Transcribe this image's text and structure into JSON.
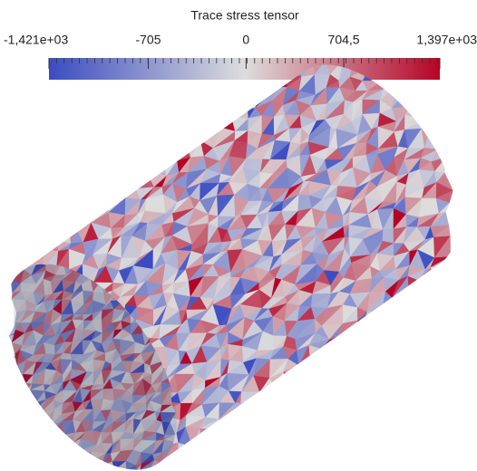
{
  "colorbar": {
    "title": "Trace stress tensor",
    "range": [
      -1421,
      1397
    ],
    "ticks": [
      {
        "value": -1421,
        "label": "-1,421e+03"
      },
      -705,
      0,
      {
        "value": 704.5,
        "label": "704,5"
      },
      {
        "value": 1397,
        "label": "1,397e+03"
      }
    ],
    "colors": [
      "#3b4cc0",
      "#dddddd",
      "#b40426"
    ]
  }
}
